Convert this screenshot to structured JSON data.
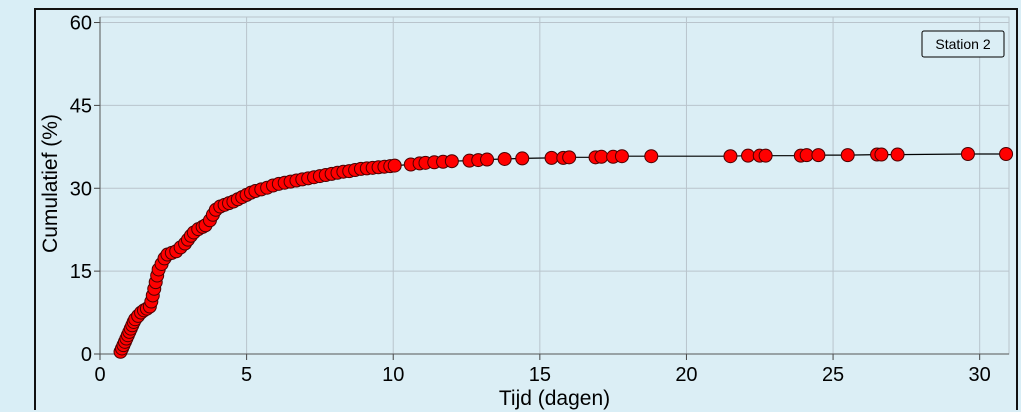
{
  "chart_data": {
    "type": "scatter",
    "xlabel": "Tijd (dagen)",
    "ylabel": "Cumulatief (%)",
    "xlim": [
      0,
      31
    ],
    "ylim": [
      0,
      61
    ],
    "xticks": [
      "0",
      "5",
      "10",
      "15",
      "20",
      "25",
      "30"
    ],
    "yticks": [
      "0",
      "15",
      "30",
      "45",
      "60"
    ],
    "grid": true,
    "legend": {
      "label": "Station 2",
      "placement": "top-right"
    },
    "series": [
      {
        "name": "Station 2",
        "marker_color": "#ff0000",
        "line_color": "#000000",
        "points": [
          [
            0.7,
            0.4
          ],
          [
            0.75,
            1.0
          ],
          [
            0.8,
            1.6
          ],
          [
            0.85,
            2.2
          ],
          [
            0.9,
            2.8
          ],
          [
            0.95,
            3.4
          ],
          [
            1.0,
            4.0
          ],
          [
            1.05,
            4.6
          ],
          [
            1.1,
            5.2
          ],
          [
            1.15,
            5.8
          ],
          [
            1.2,
            6.3
          ],
          [
            1.3,
            6.9
          ],
          [
            1.4,
            7.5
          ],
          [
            1.5,
            7.9
          ],
          [
            1.6,
            8.2
          ],
          [
            1.7,
            8.6
          ],
          [
            1.75,
            9.5
          ],
          [
            1.8,
            10.6
          ],
          [
            1.85,
            11.8
          ],
          [
            1.9,
            13.0
          ],
          [
            1.95,
            14.2
          ],
          [
            2.0,
            15.3
          ],
          [
            2.1,
            16.3
          ],
          [
            2.2,
            17.3
          ],
          [
            2.3,
            18.0
          ],
          [
            2.45,
            18.3
          ],
          [
            2.6,
            18.6
          ],
          [
            2.75,
            19.3
          ],
          [
            2.9,
            20.0
          ],
          [
            3.0,
            20.7
          ],
          [
            3.1,
            21.4
          ],
          [
            3.2,
            22.0
          ],
          [
            3.35,
            22.6
          ],
          [
            3.5,
            23.0
          ],
          [
            3.6,
            23.3
          ],
          [
            3.75,
            24.2
          ],
          [
            3.85,
            25.2
          ],
          [
            3.95,
            26.1
          ],
          [
            4.1,
            26.7
          ],
          [
            4.25,
            27.0
          ],
          [
            4.4,
            27.3
          ],
          [
            4.55,
            27.6
          ],
          [
            4.7,
            28.0
          ],
          [
            4.85,
            28.4
          ],
          [
            5.0,
            28.8
          ],
          [
            5.15,
            29.2
          ],
          [
            5.3,
            29.5
          ],
          [
            5.5,
            29.8
          ],
          [
            5.7,
            30.1
          ],
          [
            5.9,
            30.5
          ],
          [
            6.1,
            30.8
          ],
          [
            6.3,
            31.0
          ],
          [
            6.5,
            31.2
          ],
          [
            6.7,
            31.4
          ],
          [
            6.9,
            31.6
          ],
          [
            7.1,
            31.8
          ],
          [
            7.3,
            32.0
          ],
          [
            7.5,
            32.2
          ],
          [
            7.7,
            32.4
          ],
          [
            7.9,
            32.6
          ],
          [
            8.1,
            32.8
          ],
          [
            8.3,
            33.0
          ],
          [
            8.5,
            33.1
          ],
          [
            8.7,
            33.3
          ],
          [
            8.9,
            33.5
          ],
          [
            9.1,
            33.6
          ],
          [
            9.3,
            33.7
          ],
          [
            9.5,
            33.8
          ],
          [
            9.7,
            33.9
          ],
          [
            9.9,
            34.0
          ],
          [
            10.05,
            34.1
          ],
          [
            10.6,
            34.3
          ],
          [
            10.9,
            34.5
          ],
          [
            11.1,
            34.6
          ],
          [
            11.4,
            34.7
          ],
          [
            11.7,
            34.8
          ],
          [
            12.0,
            34.9
          ],
          [
            12.6,
            35.0
          ],
          [
            12.9,
            35.1
          ],
          [
            13.2,
            35.2
          ],
          [
            13.8,
            35.3
          ],
          [
            14.4,
            35.4
          ],
          [
            15.4,
            35.5
          ],
          [
            15.8,
            35.5
          ],
          [
            16.0,
            35.6
          ],
          [
            16.9,
            35.6
          ],
          [
            17.1,
            35.7
          ],
          [
            17.5,
            35.7
          ],
          [
            17.8,
            35.8
          ],
          [
            18.8,
            35.8
          ],
          [
            21.5,
            35.8
          ],
          [
            22.1,
            35.9
          ],
          [
            22.5,
            35.9
          ],
          [
            22.7,
            35.9
          ],
          [
            23.9,
            35.9
          ],
          [
            24.1,
            36.0
          ],
          [
            24.5,
            36.0
          ],
          [
            25.5,
            36.0
          ],
          [
            26.5,
            36.1
          ],
          [
            26.65,
            36.1
          ],
          [
            27.2,
            36.1
          ],
          [
            29.6,
            36.2
          ],
          [
            30.9,
            36.2
          ]
        ]
      }
    ]
  }
}
